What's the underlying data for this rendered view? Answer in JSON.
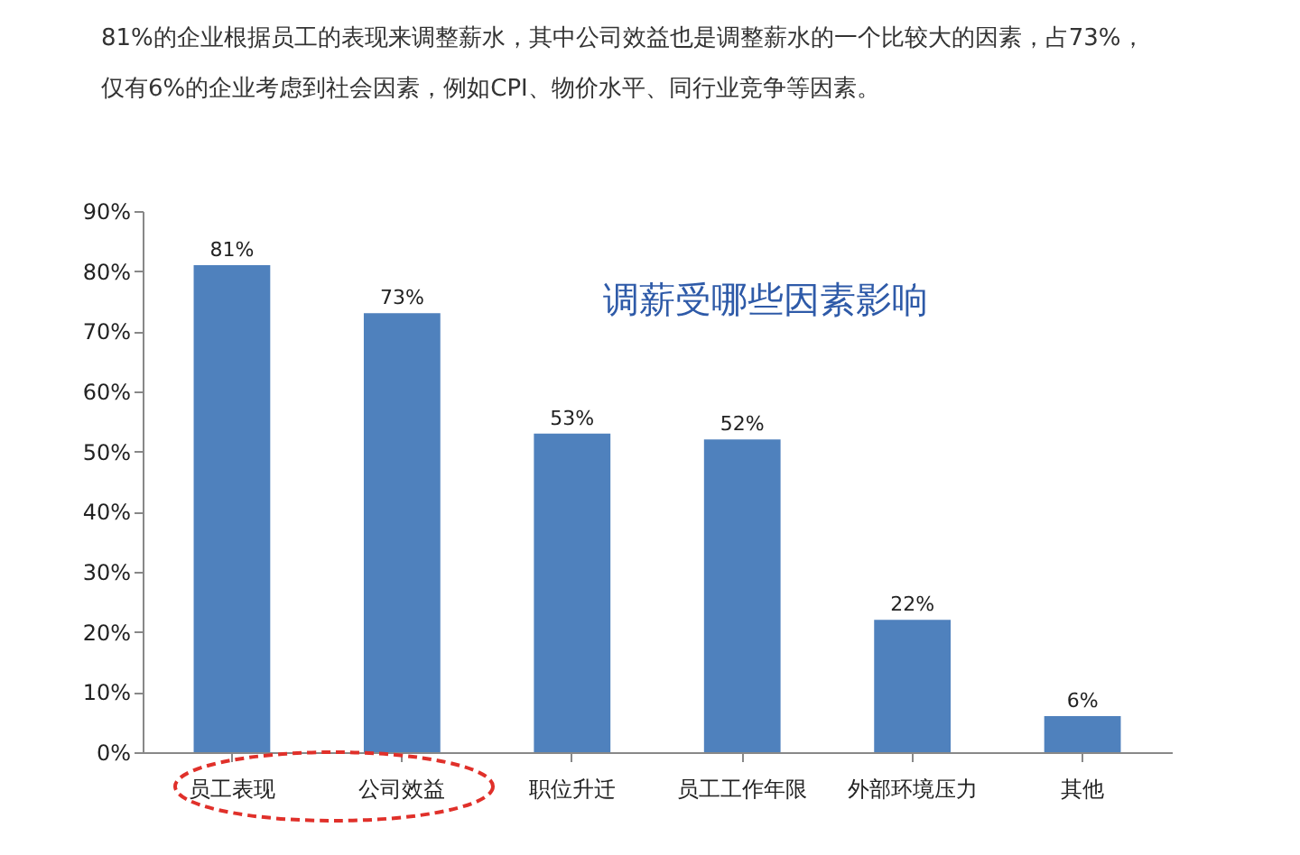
{
  "chart_data": {
    "type": "bar",
    "title": "调薪受哪些因素影响",
    "annotations": [
      "81%的企业根据员工的表现来调整薪水，其中公司效益也是调整薪水的一个比较大的因素，占73%，",
      "仅有6%的企业考虑到社会因素，例如CPI、物价水平、同行业竞争等因素。"
    ],
    "categories": [
      "员工表现",
      "公司效益",
      "职位升迁",
      "员工工作年限",
      "外部环境压力",
      "其他"
    ],
    "values": [
      81,
      73,
      53,
      52,
      22,
      6
    ],
    "value_labels": [
      "81%",
      "73%",
      "53%",
      "52%",
      "22%",
      "6%"
    ],
    "color": "#4f81bd",
    "ylim": [
      0,
      90
    ],
    "yticks": [
      {
        "value": 0,
        "label": "0%"
      },
      {
        "value": 10,
        "label": "10%"
      },
      {
        "value": 20,
        "label": "20%"
      },
      {
        "value": 30,
        "label": "30%"
      },
      {
        "value": 40,
        "label": "40%"
      },
      {
        "value": 50,
        "label": "50%"
      },
      {
        "value": 60,
        "label": "60%"
      },
      {
        "value": 70,
        "label": "70%"
      },
      {
        "value": 80,
        "label": "80%"
      },
      {
        "value": 90,
        "label": "90%"
      }
    ],
    "grid": false
  }
}
